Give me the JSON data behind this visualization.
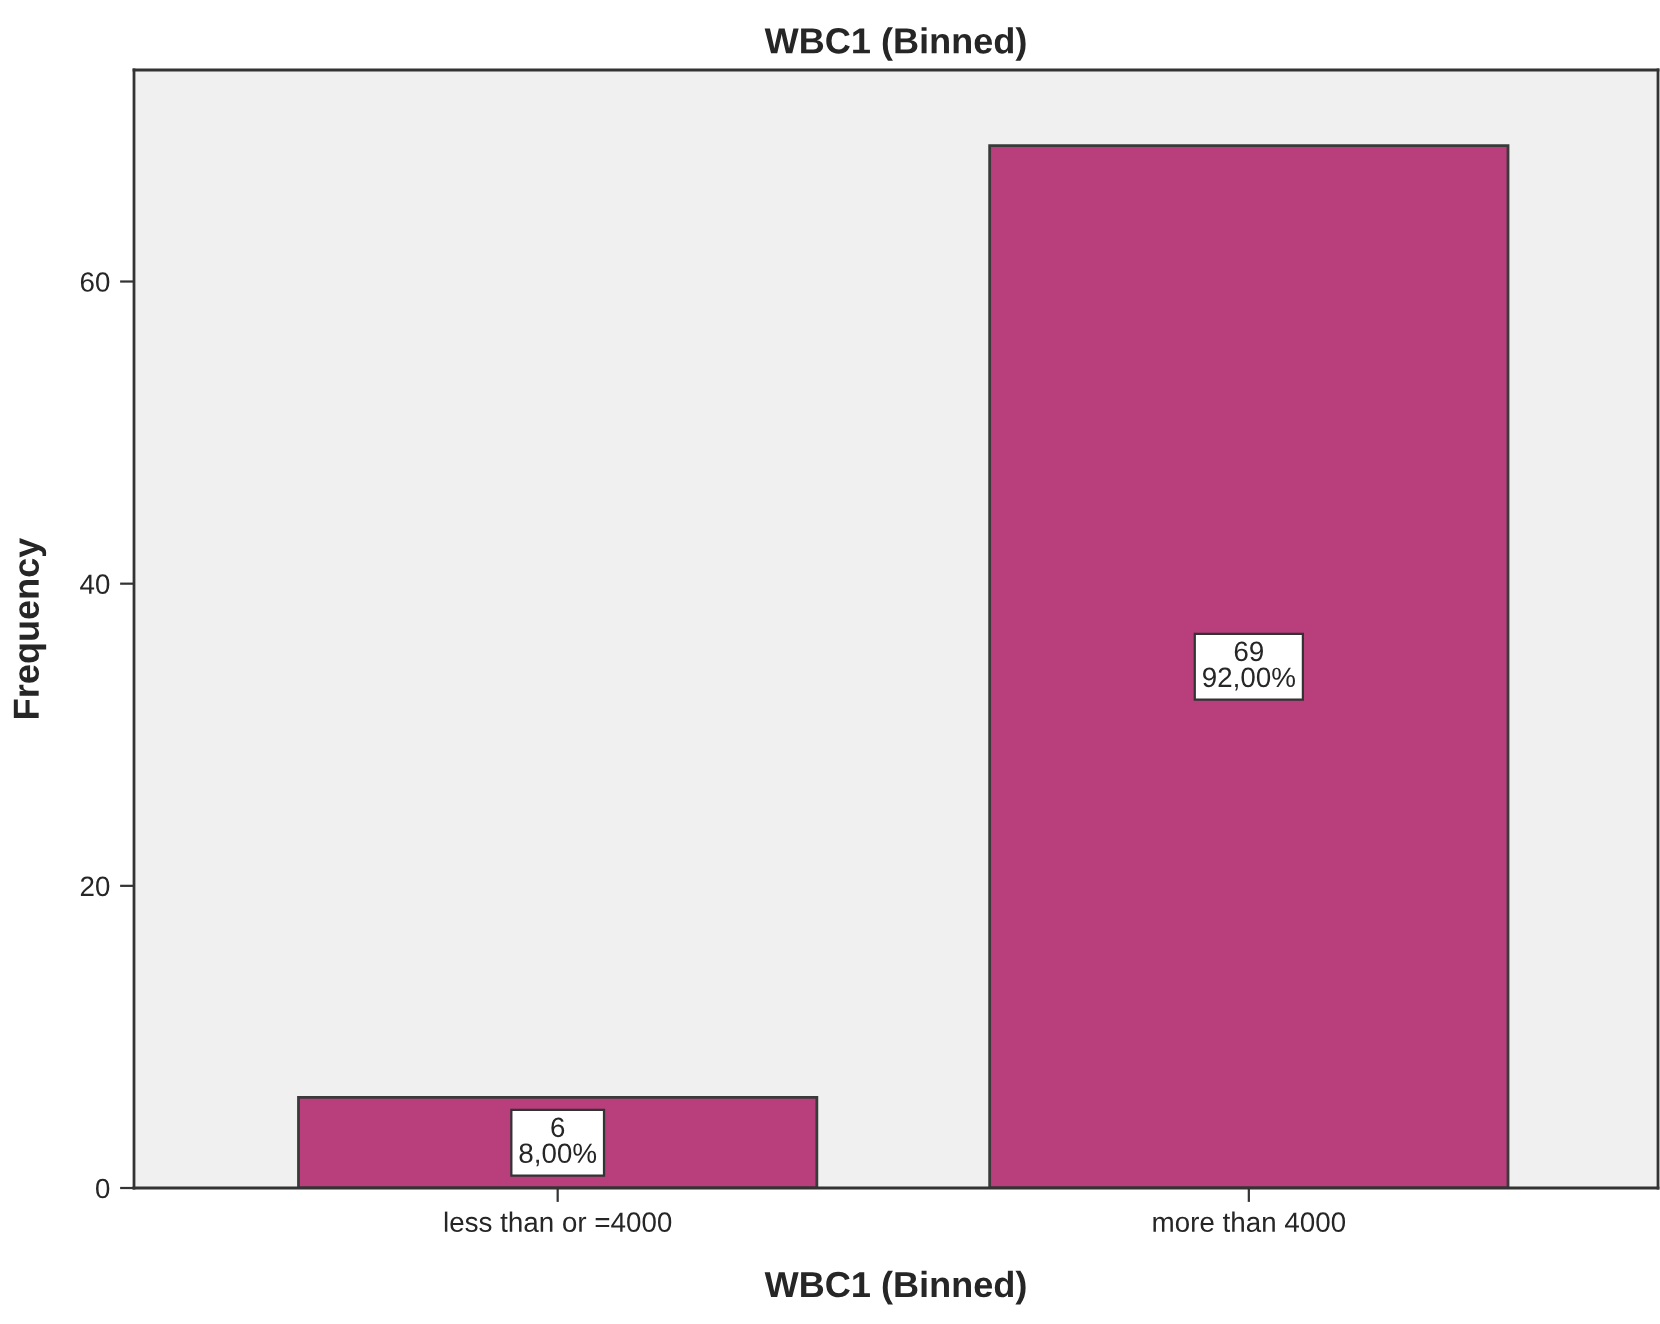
{
  "chart_data": {
    "type": "bar",
    "title": "WBC1 (Binned)",
    "xlabel": "WBC1 (Binned)",
    "ylabel": "Frequency",
    "categories": [
      "less than or =4000",
      "more than 4000"
    ],
    "values": [
      6,
      69
    ],
    "value_labels": [
      "6\n8,00%",
      "69\n92,00%"
    ],
    "color": "#b83e7c",
    "ylim": [
      0,
      74
    ],
    "yticks": [
      0,
      20,
      40,
      60
    ],
    "grid": false
  }
}
